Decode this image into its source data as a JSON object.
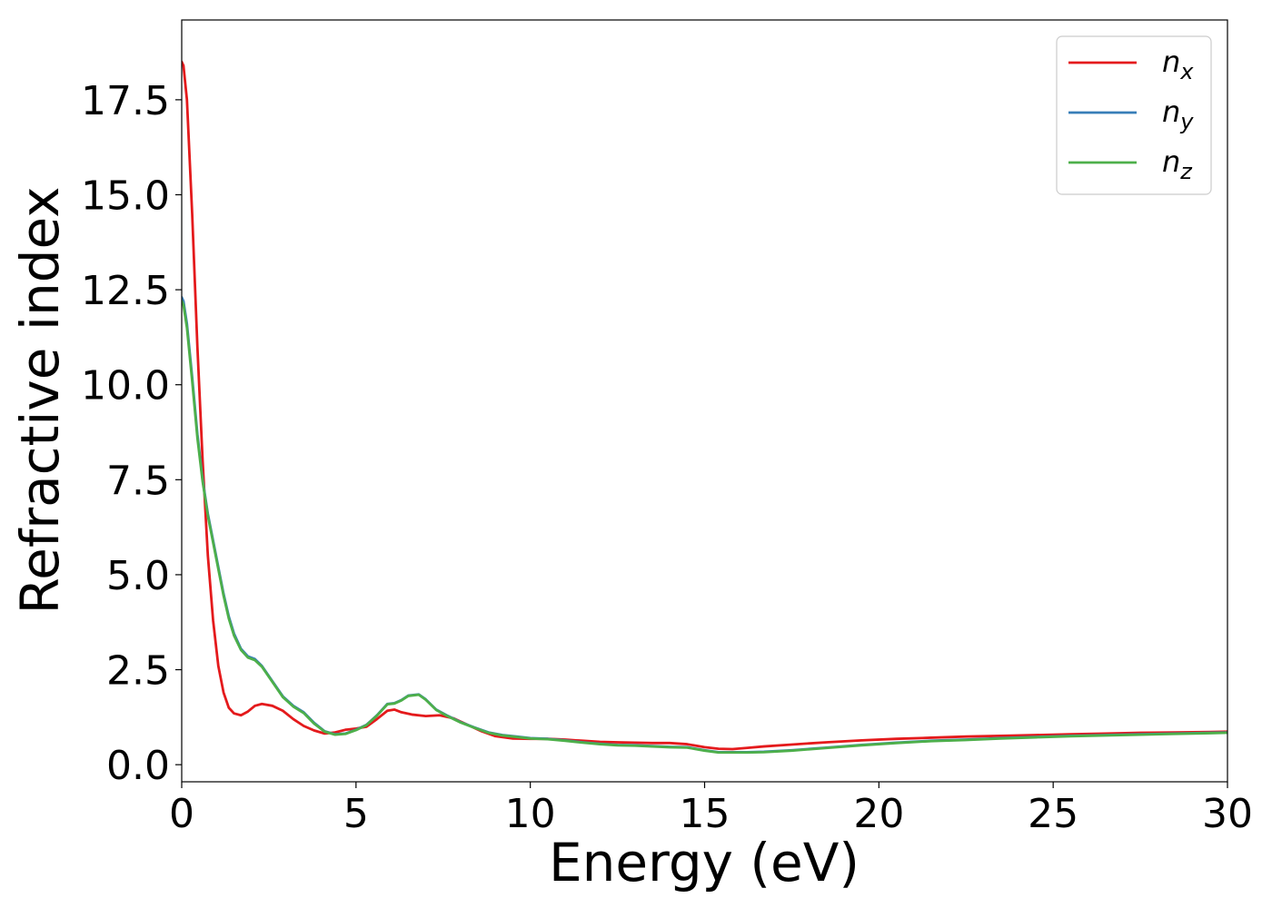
{
  "chart_data": {
    "type": "line",
    "xlabel": "Energy (eV)",
    "ylabel": "Refractive index",
    "xlim": [
      0,
      30
    ],
    "ylim": [
      -0.45,
      19.6
    ],
    "xticks": [
      0,
      5,
      10,
      15,
      20,
      25,
      30
    ],
    "xtick_labels": [
      "0",
      "5",
      "10",
      "15",
      "20",
      "25",
      "30"
    ],
    "yticks": [
      0,
      2.5,
      5,
      7.5,
      10,
      12.5,
      15,
      17.5
    ],
    "ytick_labels": [
      "0.0",
      "2.5",
      "5.0",
      "7.5",
      "10.0",
      "12.5",
      "15.0",
      "17.5"
    ],
    "grid": false,
    "legend_position": "top-right",
    "series": [
      {
        "name": "n_x",
        "legend_base": "n",
        "legend_sub": "x",
        "color": "#e41a1c",
        "points": [
          [
            0,
            18.5
          ],
          [
            0.05,
            18.4
          ],
          [
            0.15,
            17.5
          ],
          [
            0.3,
            14.5
          ],
          [
            0.45,
            11.0
          ],
          [
            0.6,
            8.0
          ],
          [
            0.75,
            5.5
          ],
          [
            0.9,
            3.8
          ],
          [
            1.05,
            2.6
          ],
          [
            1.2,
            1.9
          ],
          [
            1.35,
            1.5
          ],
          [
            1.5,
            1.35
          ],
          [
            1.7,
            1.3
          ],
          [
            1.9,
            1.4
          ],
          [
            2.1,
            1.55
          ],
          [
            2.3,
            1.6
          ],
          [
            2.6,
            1.55
          ],
          [
            2.9,
            1.42
          ],
          [
            3.2,
            1.2
          ],
          [
            3.5,
            1.02
          ],
          [
            3.8,
            0.9
          ],
          [
            4.1,
            0.82
          ],
          [
            4.4,
            0.85
          ],
          [
            4.7,
            0.92
          ],
          [
            5.0,
            0.95
          ],
          [
            5.3,
            1.0
          ],
          [
            5.6,
            1.2
          ],
          [
            5.9,
            1.42
          ],
          [
            6.1,
            1.45
          ],
          [
            6.3,
            1.38
          ],
          [
            6.6,
            1.32
          ],
          [
            7.0,
            1.28
          ],
          [
            7.4,
            1.3
          ],
          [
            7.8,
            1.22
          ],
          [
            8.2,
            1.05
          ],
          [
            8.6,
            0.88
          ],
          [
            9.0,
            0.75
          ],
          [
            9.5,
            0.69
          ],
          [
            10.0,
            0.68
          ],
          [
            10.5,
            0.68
          ],
          [
            11.0,
            0.66
          ],
          [
            11.5,
            0.63
          ],
          [
            12.0,
            0.6
          ],
          [
            12.5,
            0.59
          ],
          [
            13.0,
            0.58
          ],
          [
            13.5,
            0.57
          ],
          [
            14.0,
            0.57
          ],
          [
            14.5,
            0.54
          ],
          [
            15.0,
            0.46
          ],
          [
            15.4,
            0.42
          ],
          [
            15.8,
            0.41
          ],
          [
            16.2,
            0.44
          ],
          [
            16.7,
            0.48
          ],
          [
            17.5,
            0.53
          ],
          [
            18.5,
            0.59
          ],
          [
            19.5,
            0.64
          ],
          [
            20.5,
            0.68
          ],
          [
            21.5,
            0.71
          ],
          [
            22.5,
            0.74
          ],
          [
            23.5,
            0.76
          ],
          [
            24.5,
            0.78
          ],
          [
            25.5,
            0.8
          ],
          [
            26.5,
            0.82
          ],
          [
            27.5,
            0.84
          ],
          [
            28.5,
            0.85
          ],
          [
            29.5,
            0.86
          ],
          [
            30,
            0.87
          ]
        ]
      },
      {
        "name": "n_y",
        "legend_base": "n",
        "legend_sub": "y",
        "color": "#377eb8",
        "points": [
          [
            0,
            12.3
          ],
          [
            0.05,
            12.2
          ],
          [
            0.15,
            11.6
          ],
          [
            0.3,
            10.2
          ],
          [
            0.45,
            8.7
          ],
          [
            0.6,
            7.5
          ],
          [
            0.75,
            6.6
          ],
          [
            0.9,
            5.9
          ],
          [
            1.05,
            5.2
          ],
          [
            1.2,
            4.5
          ],
          [
            1.35,
            3.9
          ],
          [
            1.5,
            3.45
          ],
          [
            1.7,
            3.05
          ],
          [
            1.9,
            2.85
          ],
          [
            2.1,
            2.78
          ],
          [
            2.3,
            2.6
          ],
          [
            2.6,
            2.2
          ],
          [
            2.9,
            1.8
          ],
          [
            3.2,
            1.55
          ],
          [
            3.5,
            1.38
          ],
          [
            3.8,
            1.1
          ],
          [
            4.1,
            0.88
          ],
          [
            4.4,
            0.8
          ],
          [
            4.7,
            0.82
          ],
          [
            5.0,
            0.92
          ],
          [
            5.3,
            1.05
          ],
          [
            5.6,
            1.3
          ],
          [
            5.9,
            1.6
          ],
          [
            6.1,
            1.62
          ],
          [
            6.3,
            1.7
          ],
          [
            6.5,
            1.82
          ],
          [
            6.8,
            1.85
          ],
          [
            7.0,
            1.72
          ],
          [
            7.3,
            1.45
          ],
          [
            7.6,
            1.3
          ],
          [
            8.0,
            1.12
          ],
          [
            8.4,
            0.98
          ],
          [
            8.8,
            0.85
          ],
          [
            9.2,
            0.78
          ],
          [
            9.6,
            0.74
          ],
          [
            10.0,
            0.7
          ],
          [
            10.5,
            0.68
          ],
          [
            11.0,
            0.64
          ],
          [
            11.5,
            0.59
          ],
          [
            12.0,
            0.55
          ],
          [
            12.5,
            0.52
          ],
          [
            13.0,
            0.51
          ],
          [
            13.5,
            0.49
          ],
          [
            14.0,
            0.47
          ],
          [
            14.5,
            0.46
          ],
          [
            15.0,
            0.38
          ],
          [
            15.4,
            0.33
          ],
          [
            15.8,
            0.33
          ],
          [
            16.2,
            0.33
          ],
          [
            16.7,
            0.34
          ],
          [
            17.5,
            0.38
          ],
          [
            18.5,
            0.45
          ],
          [
            19.5,
            0.52
          ],
          [
            20.5,
            0.58
          ],
          [
            21.5,
            0.63
          ],
          [
            22.5,
            0.66
          ],
          [
            23.5,
            0.7
          ],
          [
            24.5,
            0.73
          ],
          [
            25.5,
            0.76
          ],
          [
            26.5,
            0.78
          ],
          [
            27.5,
            0.8
          ],
          [
            28.5,
            0.82
          ],
          [
            29.5,
            0.84
          ],
          [
            30,
            0.85
          ]
        ]
      },
      {
        "name": "n_z",
        "legend_base": "n",
        "legend_sub": "z",
        "color": "#4daf4a",
        "points": [
          [
            0,
            12.2
          ],
          [
            0.05,
            12.1
          ],
          [
            0.15,
            11.5
          ],
          [
            0.3,
            10.1
          ],
          [
            0.45,
            8.6
          ],
          [
            0.6,
            7.45
          ],
          [
            0.75,
            6.55
          ],
          [
            0.9,
            5.85
          ],
          [
            1.05,
            5.15
          ],
          [
            1.2,
            4.45
          ],
          [
            1.35,
            3.85
          ],
          [
            1.5,
            3.4
          ],
          [
            1.7,
            3.02
          ],
          [
            1.9,
            2.82
          ],
          [
            2.1,
            2.75
          ],
          [
            2.3,
            2.58
          ],
          [
            2.6,
            2.18
          ],
          [
            2.9,
            1.78
          ],
          [
            3.2,
            1.53
          ],
          [
            3.5,
            1.36
          ],
          [
            3.8,
            1.08
          ],
          [
            4.1,
            0.87
          ],
          [
            4.4,
            0.79
          ],
          [
            4.7,
            0.81
          ],
          [
            5.0,
            0.91
          ],
          [
            5.3,
            1.04
          ],
          [
            5.6,
            1.29
          ],
          [
            5.9,
            1.59
          ],
          [
            6.1,
            1.61
          ],
          [
            6.3,
            1.69
          ],
          [
            6.5,
            1.81
          ],
          [
            6.8,
            1.84
          ],
          [
            7.0,
            1.71
          ],
          [
            7.3,
            1.44
          ],
          [
            7.6,
            1.29
          ],
          [
            8.0,
            1.11
          ],
          [
            8.4,
            0.97
          ],
          [
            8.8,
            0.84
          ],
          [
            9.2,
            0.77
          ],
          [
            9.6,
            0.73
          ],
          [
            10.0,
            0.69
          ],
          [
            10.5,
            0.67
          ],
          [
            11.0,
            0.63
          ],
          [
            11.5,
            0.58
          ],
          [
            12.0,
            0.54
          ],
          [
            12.5,
            0.51
          ],
          [
            13.0,
            0.5
          ],
          [
            13.5,
            0.48
          ],
          [
            14.0,
            0.46
          ],
          [
            14.5,
            0.45
          ],
          [
            15.0,
            0.37
          ],
          [
            15.4,
            0.32
          ],
          [
            15.8,
            0.32
          ],
          [
            16.2,
            0.32
          ],
          [
            16.7,
            0.33
          ],
          [
            17.5,
            0.37
          ],
          [
            18.5,
            0.44
          ],
          [
            19.5,
            0.51
          ],
          [
            20.5,
            0.57
          ],
          [
            21.5,
            0.62
          ],
          [
            22.5,
            0.65
          ],
          [
            23.5,
            0.69
          ],
          [
            24.5,
            0.72
          ],
          [
            25.5,
            0.75
          ],
          [
            26.5,
            0.77
          ],
          [
            27.5,
            0.79
          ],
          [
            28.5,
            0.81
          ],
          [
            29.5,
            0.83
          ],
          [
            30,
            0.84
          ]
        ]
      }
    ]
  }
}
